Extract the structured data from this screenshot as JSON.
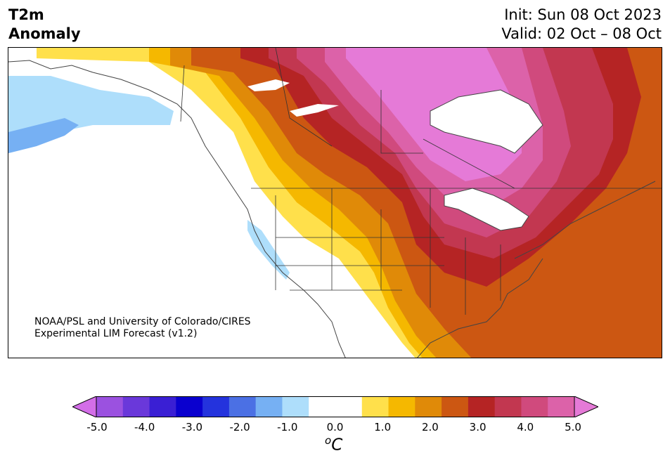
{
  "header": {
    "variable": "T2m",
    "product": "Anomaly",
    "init": "Init: Sun 08 Oct 2023",
    "valid": "Valid: 02 Oct – 08 Oct"
  },
  "credit": {
    "line1": "NOAA/PSL and University of Colorado/CIRES",
    "line2": "Experimental LIM Forecast (v1.2)"
  },
  "colorbar": {
    "unit_superscript": "o",
    "unit": "C",
    "ticks": [
      "-5.0",
      "-4.0",
      "-3.0",
      "-2.0",
      "-1.0",
      "0.0",
      "1.0",
      "2.0",
      "3.0",
      "4.0",
      "5.0"
    ],
    "colors": [
      "#d36ee8",
      "#9b51e0",
      "#6a38da",
      "#3a1fd4",
      "#0a00cf",
      "#2433dd",
      "#4b70e4",
      "#76b0f3",
      "#aedefb",
      "#ffffff",
      "#ffffff",
      "#ffe04b",
      "#f5b800",
      "#e08a08",
      "#cc5712",
      "#b52424",
      "#c23750",
      "#d04a7d",
      "#dc62a9",
      "#e57ad7"
    ]
  },
  "map": {
    "region": "North America",
    "warm_core_color": "#e57ad7",
    "cool_color": "#aedefb"
  }
}
